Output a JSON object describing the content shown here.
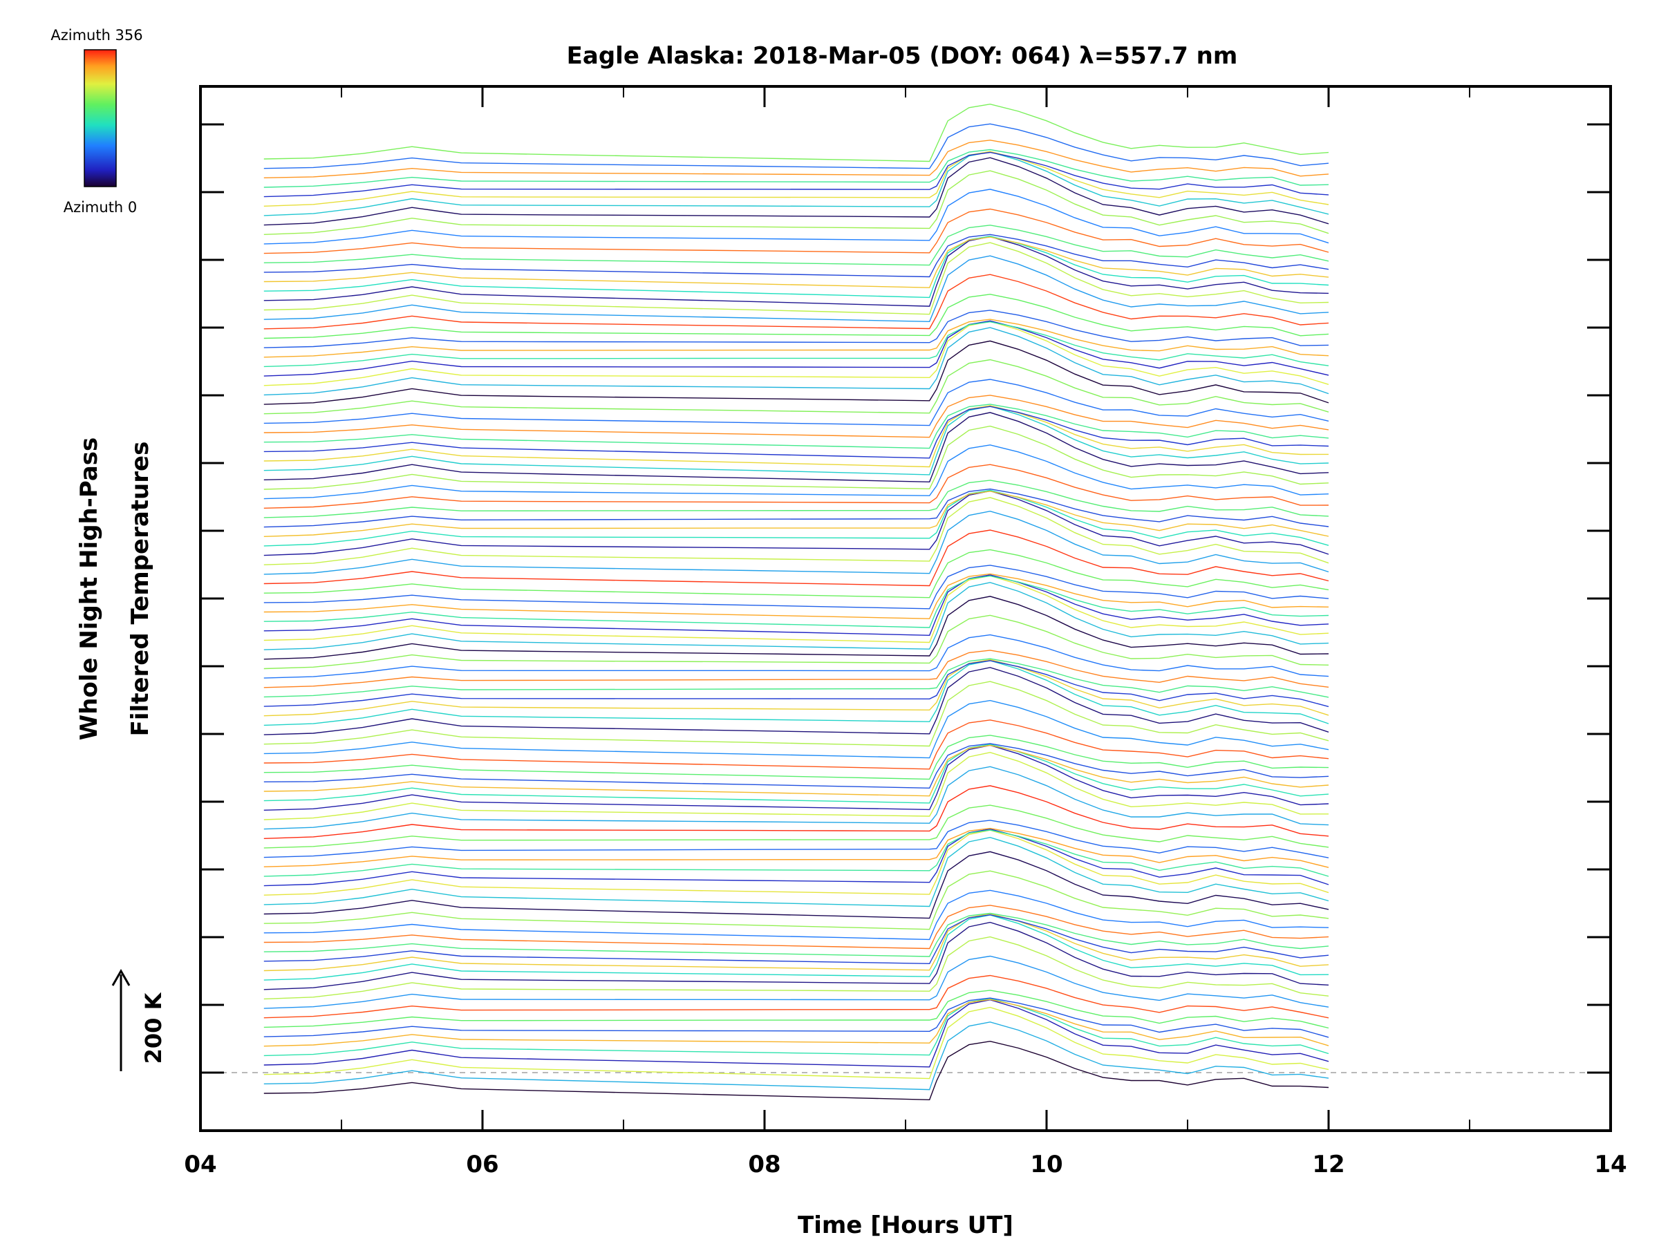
{
  "chart_data": {
    "type": "line",
    "title": "Eagle Alaska: 2018-Mar-05 (DOY: 064) λ=557.7 nm",
    "xlabel": "Time [Hours UT]",
    "ylabel_line1": "Whole Night High-Pass",
    "ylabel_line2": "Filtered Temperatures",
    "scale_bar_label": "200 K",
    "colorbar": {
      "top_label": "Azimuth 356",
      "bottom_label": "Azimuth 0",
      "colormap": "rainbow"
    },
    "xlim": [
      4,
      14
    ],
    "xticks": [
      "04",
      "06",
      "08",
      "10",
      "12",
      "14"
    ],
    "grid": false,
    "series_stacked": true,
    "series_count": 100,
    "x": [
      4.45,
      4.8,
      5.15,
      5.5,
      5.85,
      6.5,
      7.2,
      7.9,
      8.55,
      9.17,
      9.22,
      9.3,
      9.45,
      9.6,
      9.8,
      10.0,
      10.2,
      10.4,
      10.6,
      10.8,
      11.0,
      11.2,
      11.4,
      11.6,
      11.8,
      12.0
    ],
    "base_profile": [
      0,
      5,
      25,
      55,
      30,
      25,
      20,
      15,
      10,
      5,
      55,
      160,
      215,
      230,
      200,
      160,
      110,
      70,
      55,
      45,
      50,
      60,
      55,
      45,
      30,
      15
    ]
  }
}
